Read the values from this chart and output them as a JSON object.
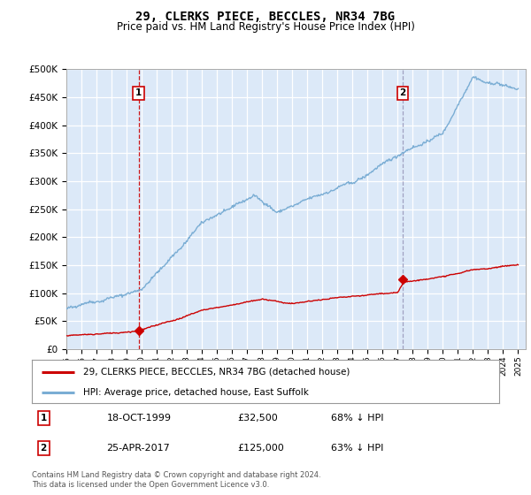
{
  "title": "29, CLERKS PIECE, BECCLES, NR34 7BG",
  "subtitle": "Price paid vs. HM Land Registry's House Price Index (HPI)",
  "plot_bg_color": "#dce9f8",
  "ylim": [
    0,
    500000
  ],
  "yticks": [
    0,
    50000,
    100000,
    150000,
    200000,
    250000,
    300000,
    350000,
    400000,
    450000,
    500000
  ],
  "xlim_start": 1995.0,
  "xlim_end": 2025.5,
  "marker1_x": 1999.8,
  "marker1_price": 32500,
  "marker2_x": 2017.33,
  "marker2_price": 125000,
  "sale_color": "#cc0000",
  "hpi_color": "#7aadd4",
  "marker2_vline_color": "#9999bb",
  "legend_sale_label": "29, CLERKS PIECE, BECCLES, NR34 7BG (detached house)",
  "legend_hpi_label": "HPI: Average price, detached house, East Suffolk",
  "annotation1_date": "18-OCT-1999",
  "annotation1_price": "£32,500",
  "annotation1_hpi": "68% ↓ HPI",
  "annotation2_date": "25-APR-2017",
  "annotation2_price": "£125,000",
  "annotation2_hpi": "63% ↓ HPI",
  "footer": "Contains HM Land Registry data © Crown copyright and database right 2024.\nThis data is licensed under the Open Government Licence v3.0."
}
